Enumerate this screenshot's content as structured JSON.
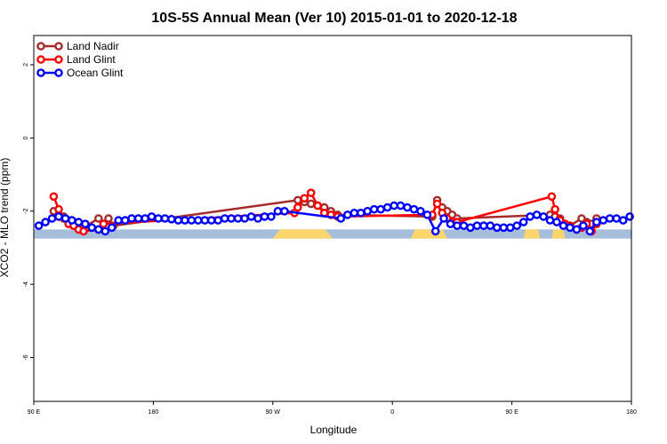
{
  "chart_data": {
    "type": "line",
    "title": "10S-5S Annual Mean (Ver 10)   2015-01-01 to 2020-12-18",
    "xlabel": "Longitude",
    "ylabel": "XCO2 - MLO trend (ppm)",
    "xlim": [
      -45,
      315
    ],
    "ylim": [
      -7.2,
      2.8
    ],
    "x_ticks": [
      {
        "value": -45,
        "label": "90 E"
      },
      {
        "value": 27,
        "label": "180"
      },
      {
        "value": 99,
        "label": "90 W"
      },
      {
        "value": 171,
        "label": "0"
      },
      {
        "value": 243,
        "label": "90 E"
      },
      {
        "value": 315,
        "label": "180"
      }
    ],
    "y_ticks": [
      {
        "value": 2,
        "label": "2"
      },
      {
        "value": 0,
        "label": "0"
      },
      {
        "value": -2,
        "label": "-2"
      },
      {
        "value": -4,
        "label": "-4"
      },
      {
        "value": -6,
        "label": "-6"
      }
    ],
    "legend_position": "top-left",
    "background": {
      "band_y": [
        -2.75,
        -2.5
      ],
      "ocean_color": "#a6bddb",
      "land_color": "#fdd66b",
      "land_segments": [
        [
          99,
          135
        ],
        [
          182,
          204
        ],
        [
          250,
          260
        ],
        [
          267,
          275
        ]
      ],
      "coast_color": "#e8c27a"
    },
    "series": [
      {
        "name": "Land Nadir",
        "color": "#a52a2a",
        "x": [
          -33,
          -30,
          -27,
          -24,
          -21,
          -15,
          -6,
          -3,
          0,
          3,
          114,
          118,
          122,
          126,
          130,
          134,
          138,
          195,
          198,
          201,
          204,
          207,
          210,
          266,
          269,
          272,
          275,
          278,
          285,
          288,
          291,
          294
        ],
        "y": [
          -2.0,
          -2.1,
          -2.15,
          -2.25,
          -2.3,
          -2.45,
          -2.2,
          -2.35,
          -2.2,
          -2.4,
          -1.7,
          -1.75,
          -1.8,
          -1.85,
          -1.9,
          -2.0,
          -2.1,
          -2.15,
          -1.7,
          -1.9,
          -2.0,
          -2.1,
          -2.2,
          -2.1,
          -2.15,
          -2.2,
          -2.35,
          -2.4,
          -2.2,
          -2.3,
          -2.35,
          -2.2
        ]
      },
      {
        "name": "Land Glint",
        "color": "#ff0000",
        "x": [
          -33,
          -30,
          -27,
          -24,
          -21,
          -18,
          -15,
          -6,
          -3,
          112,
          114,
          118,
          122,
          126,
          130,
          134,
          138,
          195,
          198,
          201,
          204,
          207,
          210,
          267,
          269,
          272,
          275,
          278,
          282,
          285,
          288,
          291,
          294
        ],
        "y": [
          -1.6,
          -1.95,
          -2.2,
          -2.35,
          -2.4,
          -2.5,
          -2.55,
          -2.5,
          -2.35,
          -2.05,
          -1.9,
          -1.65,
          -1.5,
          -1.85,
          -2.05,
          -2.1,
          -2.15,
          -2.1,
          -1.8,
          -2.05,
          -2.2,
          -2.3,
          -2.3,
          -1.6,
          -1.95,
          -2.25,
          -2.35,
          -2.4,
          -2.5,
          -2.45,
          -2.35,
          -2.55,
          -2.35
        ]
      },
      {
        "name": "Ocean Glint",
        "color": "#0000ff",
        "x": [
          -42,
          -38,
          -34,
          -30,
          -26,
          -22,
          -18,
          -14,
          -10,
          -6,
          -2,
          2,
          6,
          10,
          14,
          18,
          22,
          26,
          30,
          34,
          38,
          42,
          46,
          50,
          54,
          58,
          62,
          66,
          70,
          74,
          78,
          82,
          86,
          90,
          94,
          98,
          102,
          106,
          140,
          144,
          148,
          152,
          156,
          160,
          164,
          168,
          172,
          176,
          180,
          184,
          188,
          192,
          197,
          202,
          206,
          210,
          214,
          218,
          222,
          226,
          230,
          234,
          238,
          242,
          246,
          250,
          254,
          258,
          262,
          266,
          270,
          274,
          278,
          282,
          286,
          290,
          294,
          298,
          302,
          306,
          310,
          314
        ],
        "y": [
          -2.4,
          -2.3,
          -2.2,
          -2.15,
          -2.2,
          -2.25,
          -2.3,
          -2.35,
          -2.45,
          -2.5,
          -2.55,
          -2.45,
          -2.25,
          -2.25,
          -2.2,
          -2.2,
          -2.2,
          -2.15,
          -2.2,
          -2.2,
          -2.22,
          -2.25,
          -2.25,
          -2.25,
          -2.25,
          -2.25,
          -2.25,
          -2.25,
          -2.2,
          -2.2,
          -2.2,
          -2.2,
          -2.15,
          -2.2,
          -2.15,
          -2.15,
          -2.0,
          -2.0,
          -2.2,
          -2.1,
          -2.05,
          -2.05,
          -2.0,
          -1.95,
          -1.95,
          -1.9,
          -1.85,
          -1.85,
          -1.9,
          -1.95,
          -2.0,
          -2.1,
          -2.55,
          -2.2,
          -2.35,
          -2.4,
          -2.4,
          -2.45,
          -2.4,
          -2.4,
          -2.4,
          -2.45,
          -2.45,
          -2.45,
          -2.4,
          -2.3,
          -2.15,
          -2.1,
          -2.15,
          -2.25,
          -2.3,
          -2.4,
          -2.45,
          -2.5,
          -2.4,
          -2.55,
          -2.3,
          -2.25,
          -2.2,
          -2.2,
          -2.25,
          -2.15
        ]
      }
    ]
  }
}
